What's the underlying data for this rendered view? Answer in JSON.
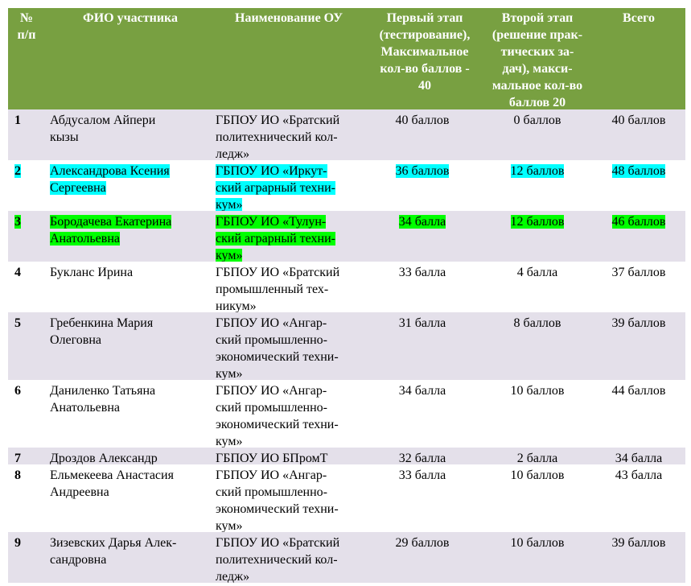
{
  "columns": {
    "num": "№ п/п",
    "name": "ФИО участника",
    "org": "Наименование ОУ",
    "stage1": "Первый этап (тестирование), Максимальное кол-во баллов - 40",
    "stage2": "Второй этап (решение практических задач), максимальное кол-во баллов 20",
    "total": "Всего"
  },
  "header_lines": {
    "num": [
      "№",
      "п/п"
    ],
    "name": [
      "ФИО участника"
    ],
    "org": [
      "Наименование ОУ"
    ],
    "stage1": [
      "Первый этап",
      "(тестирование),",
      "Максимальное",
      "кол-во баллов -",
      "40"
    ],
    "stage2": [
      "Второй этап",
      "(решение прак-",
      "тических за-",
      "дач), макси-",
      "мальное кол-во",
      "баллов 20"
    ],
    "total": [
      "Всего"
    ]
  },
  "rows": [
    {
      "num": "1",
      "name": [
        "Абдусалом Айпери",
        "кызы"
      ],
      "org": [
        "ГБПОУ ИО «Братский",
        "политехнический кол-",
        "ледж»"
      ],
      "stage1": "40 баллов",
      "stage2": "0 баллов",
      "total": "40 баллов",
      "highlight": ""
    },
    {
      "num": "2",
      "name": [
        "Александрова Ксения",
        "Сергеевна"
      ],
      "org": [
        "ГБПОУ ИО «Иркут-",
        "ский аграрный техни-",
        "кум»"
      ],
      "stage1": "36 баллов",
      "stage2": "12 баллов",
      "total": "48 баллов",
      "highlight": "#00ffff"
    },
    {
      "num": "3",
      "name": [
        "Бородачева Екатерина",
        "Анатольевна"
      ],
      "org": [
        "ГБПОУ ИО «Тулун-",
        "ский аграрный техни-",
        "кум»"
      ],
      "stage1": "34 балла",
      "stage2": "12 баллов",
      "total": "46 баллов",
      "highlight": "#00ff00"
    },
    {
      "num": "4",
      "name": [
        "Букланс Ирина"
      ],
      "org": [
        "ГБПОУ ИО «Братский",
        "промышленный тех-",
        "никум»"
      ],
      "stage1": "33 балла",
      "stage2": "4 балла",
      "total": "37 баллов",
      "highlight": ""
    },
    {
      "num": "5",
      "name": [
        "Гребенкина Мария",
        "Олеговна"
      ],
      "org": [
        "ГБПОУ ИО «Ангар-",
        "ский промышленно-",
        "экономический техни-",
        "кум»"
      ],
      "stage1": "31 балла",
      "stage2": "8 баллов",
      "total": "39 баллов",
      "highlight": ""
    },
    {
      "num": "6",
      "name": [
        "Даниленко Татьяна",
        "Анатольевна"
      ],
      "org": [
        "ГБПОУ ИО «Ангар-",
        "ский промышленно-",
        "экономический техни-",
        "кум»"
      ],
      "stage1": "34 балла",
      "stage2": "10 баллов",
      "total": "44 баллов",
      "highlight": ""
    },
    {
      "num": "7",
      "name": [
        "Дроздов Александр"
      ],
      "org": [
        "ГБПОУ ИО БПромТ"
      ],
      "stage1": "32 балла",
      "stage2": "2 балла",
      "total": "34 балла",
      "highlight": ""
    },
    {
      "num": "8",
      "name": [
        "Ельмекеева Анастасия",
        "Андреевна"
      ],
      "org": [
        "ГБПОУ ИО «Ангар-",
        "ский промышленно-",
        "экономический техни-",
        "кум»"
      ],
      "stage1": "33 балла",
      "stage2": "10 баллов",
      "total": "43 балла",
      "highlight": ""
    },
    {
      "num": "9",
      "name": [
        "Зизевских Дарья Алек-",
        "сандровна"
      ],
      "org": [
        "ГБПОУ ИО «Братский",
        "политехнический кол-",
        "ледж»"
      ],
      "stage1": "29 баллов",
      "stage2": "10 баллов",
      "total": "39 баллов",
      "highlight": ""
    }
  ],
  "colors": {
    "header_bg": "#78a041",
    "band_bg": "#e4e0ea",
    "highlight_cyan": "#00ffff",
    "highlight_green": "#00ff00"
  }
}
